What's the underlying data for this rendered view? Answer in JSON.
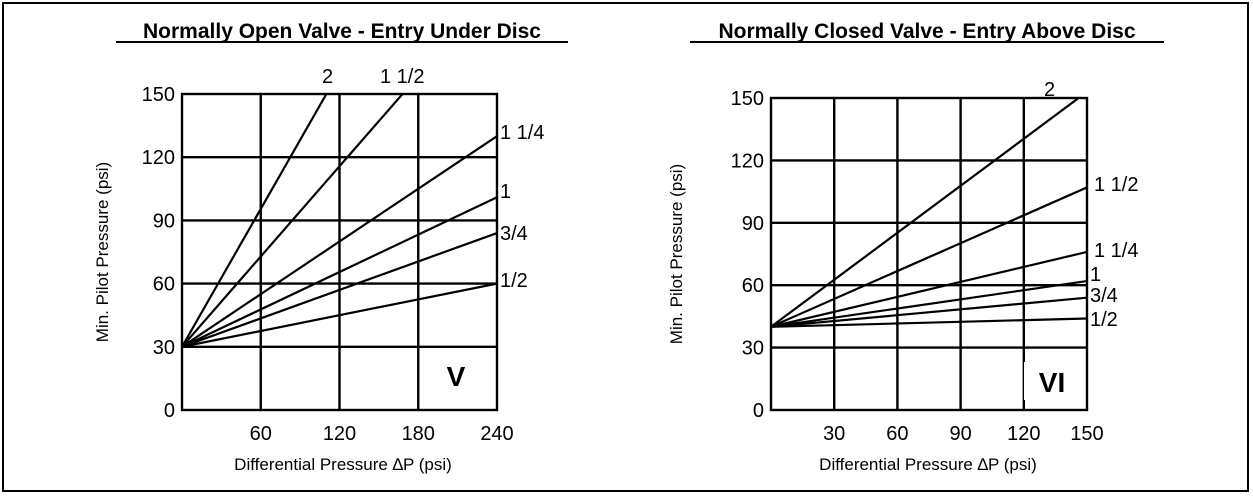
{
  "chart_data": [
    {
      "type": "line",
      "title": "Normally Open Valve - Entry Under Disc",
      "xlabel": "Differential Pressure ∆P (psi)",
      "ylabel": "Min. Pilot Pressure (psi)",
      "xlim": [
        0,
        240
      ],
      "ylim": [
        0,
        150
      ],
      "x_ticks": [
        "60",
        "120",
        "180",
        "240"
      ],
      "y_ticks": [
        "0",
        "30",
        "60",
        "90",
        "120",
        "150"
      ],
      "grid": true,
      "panel_mark": "V",
      "series": [
        {
          "name": "2",
          "points": [
            [
              0,
              30
            ],
            [
              110,
              150
            ]
          ]
        },
        {
          "name": "1 1/2",
          "points": [
            [
              0,
              30
            ],
            [
              168,
              150
            ]
          ]
        },
        {
          "name": "1 1/4",
          "points": [
            [
              0,
              30
            ],
            [
              240,
              130
            ]
          ]
        },
        {
          "name": "1",
          "points": [
            [
              0,
              30
            ],
            [
              240,
              101
            ]
          ]
        },
        {
          "name": "3/4",
          "points": [
            [
              0,
              30
            ],
            [
              240,
              84
            ]
          ]
        },
        {
          "name": "1/2",
          "points": [
            [
              0,
              30
            ],
            [
              240,
              60
            ]
          ]
        }
      ]
    },
    {
      "type": "line",
      "title": "Normally Closed Valve - Entry Above Disc",
      "xlabel": "Differential Pressure ∆P (psi)",
      "ylabel": "Min. Pilot Pressure (psi)",
      "xlim": [
        0,
        150
      ],
      "ylim": [
        0,
        150
      ],
      "x_ticks": [
        "30",
        "60",
        "90",
        "120",
        "150"
      ],
      "y_ticks": [
        "0",
        "30",
        "60",
        "90",
        "120",
        "150"
      ],
      "grid": true,
      "panel_mark": "VI",
      "series": [
        {
          "name": "2",
          "points": [
            [
              0,
              40
            ],
            [
              150,
              153
            ]
          ]
        },
        {
          "name": "1 1/2",
          "points": [
            [
              0,
              40
            ],
            [
              150,
              107
            ]
          ]
        },
        {
          "name": "1 1/4",
          "points": [
            [
              0,
              40
            ],
            [
              150,
              76
            ]
          ]
        },
        {
          "name": "1",
          "points": [
            [
              0,
              40
            ],
            [
              150,
              62
            ]
          ]
        },
        {
          "name": "3/4",
          "points": [
            [
              0,
              40
            ],
            [
              150,
              54
            ]
          ]
        },
        {
          "name": "1/2",
          "points": [
            [
              0,
              40
            ],
            [
              150,
              44
            ]
          ]
        }
      ]
    }
  ]
}
